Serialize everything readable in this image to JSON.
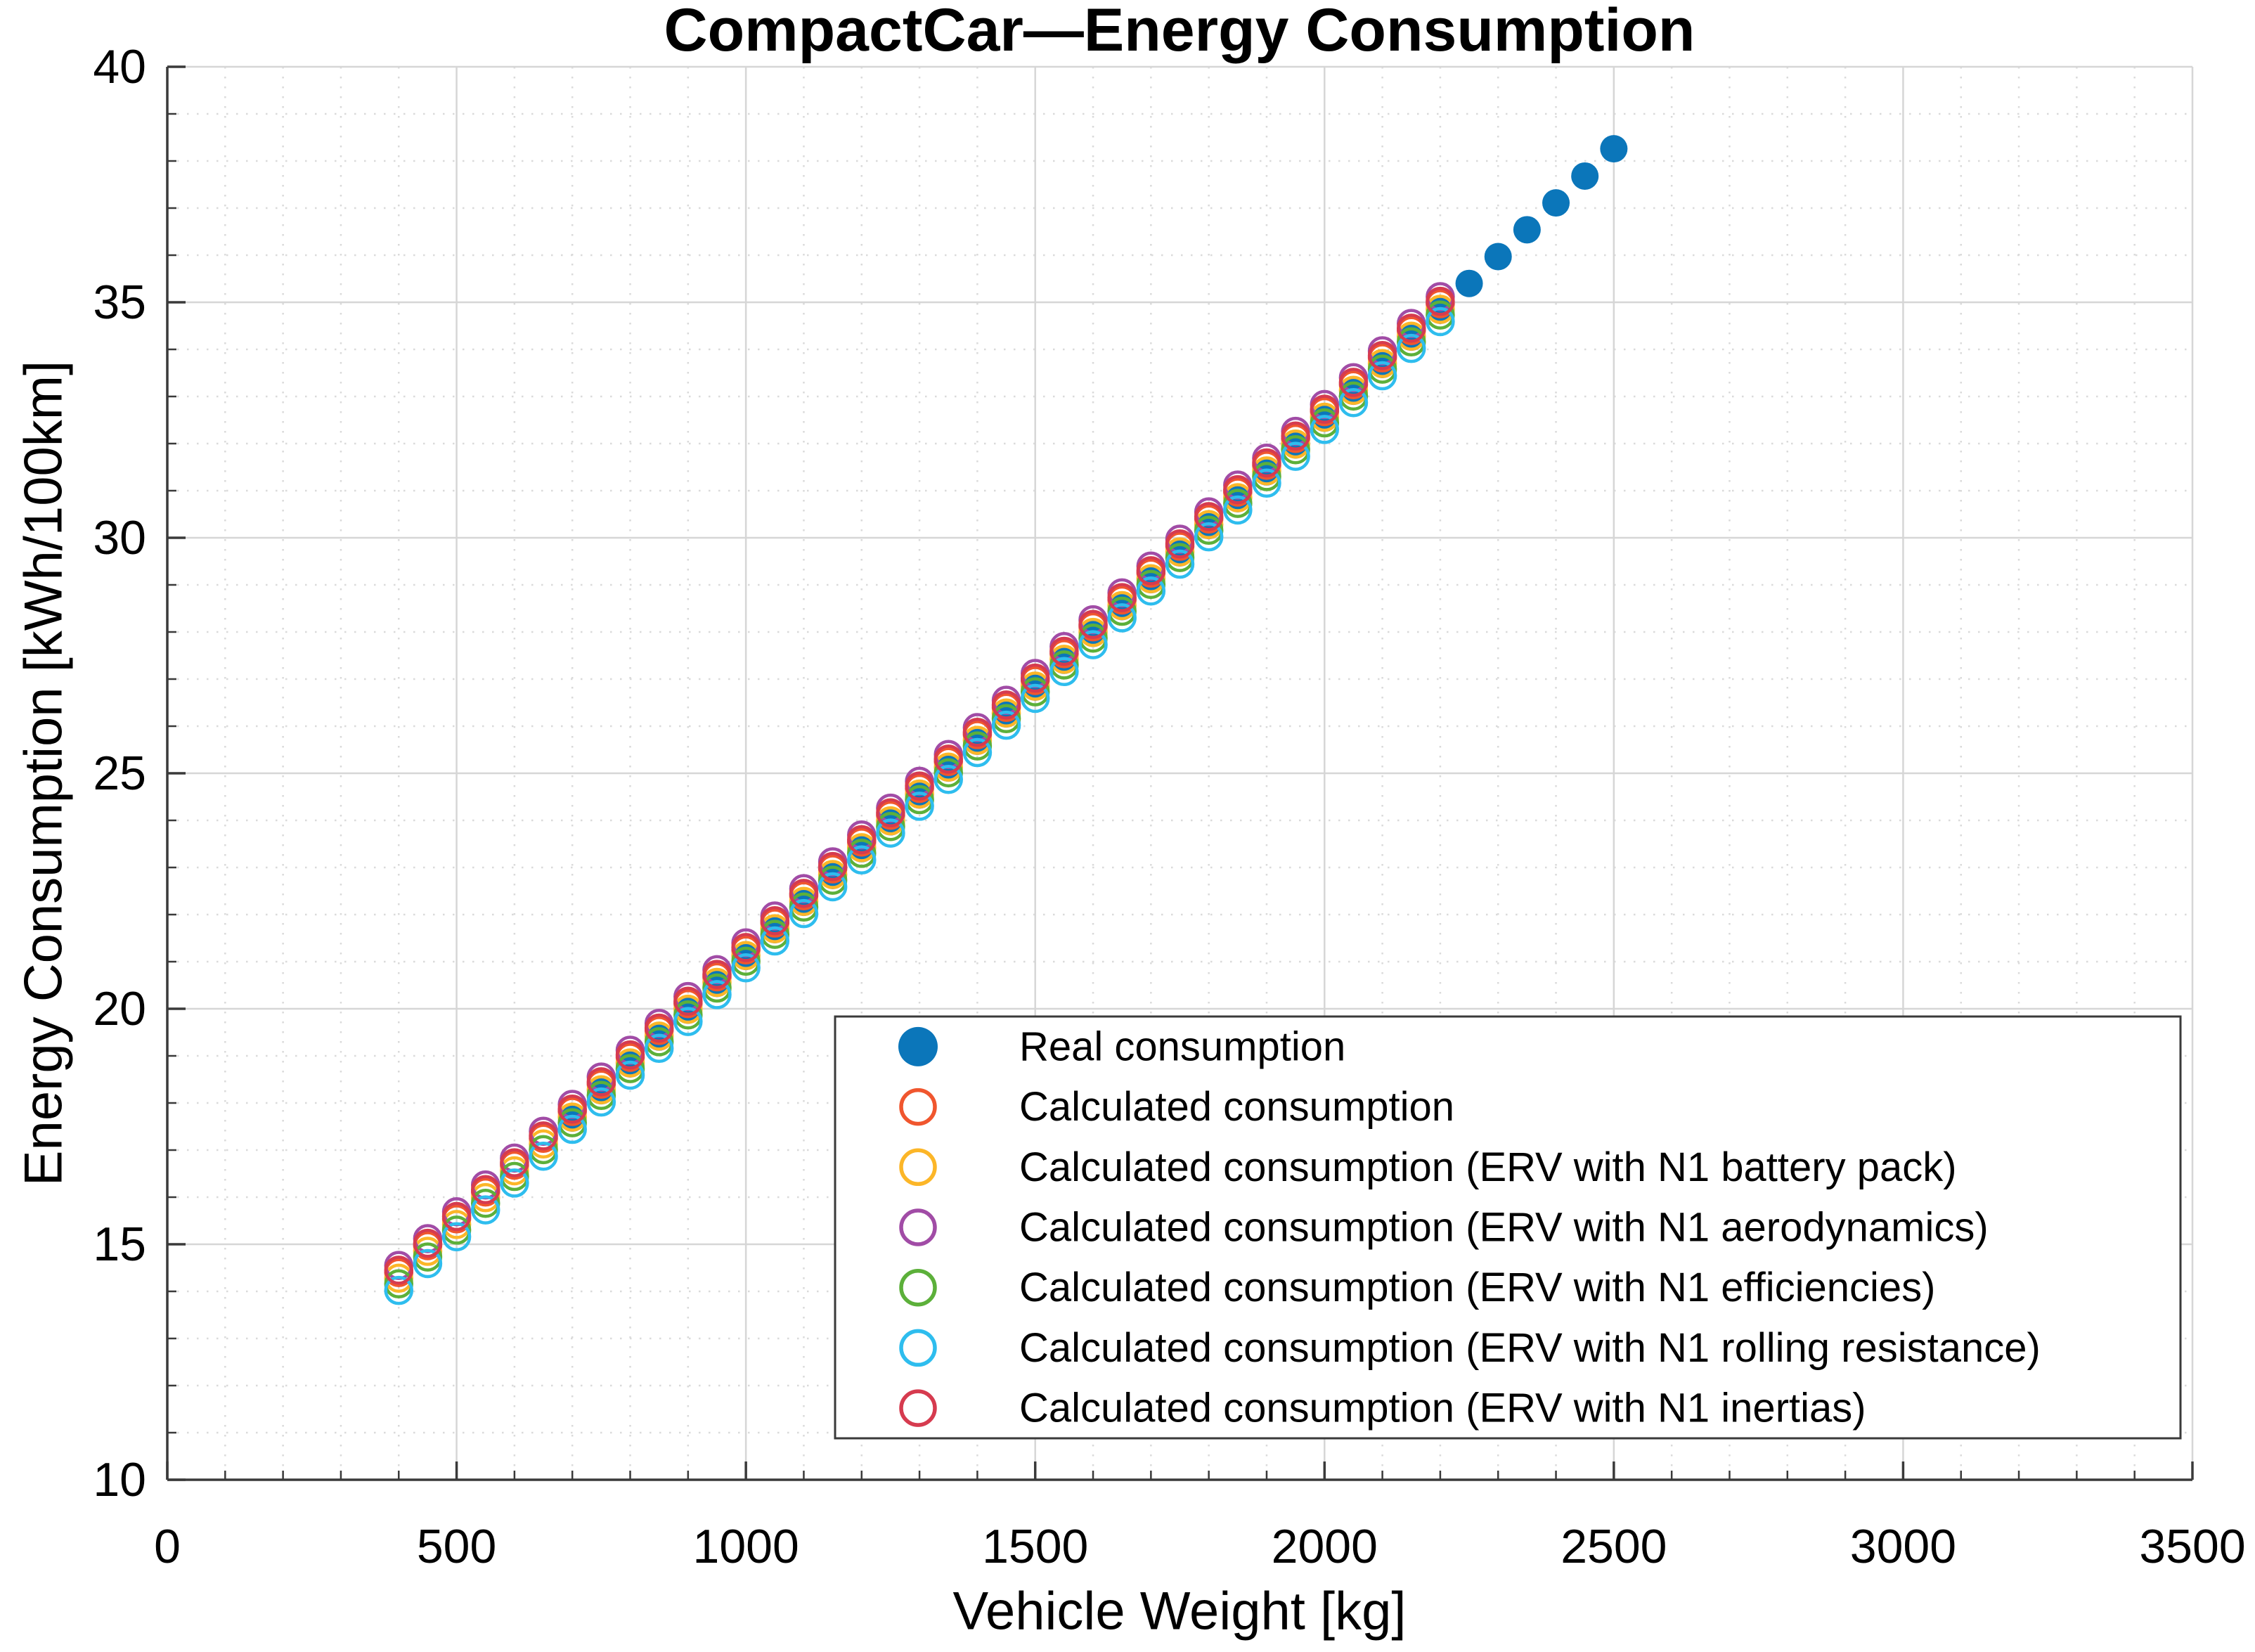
{
  "chart_data": {
    "type": "scatter",
    "title": "CompactCar—Energy Consumption",
    "xlabel": "Vehicle Weight [kg]",
    "ylabel": "Energy Consumption [kWh/100km]",
    "xlim": [
      0,
      3500
    ],
    "ylim": [
      10,
      40
    ],
    "x_major_ticks": [
      0,
      500,
      1000,
      1500,
      2000,
      2500,
      3000,
      3500
    ],
    "y_major_ticks": [
      10,
      15,
      20,
      25,
      30,
      35,
      40
    ],
    "x_minor_step": 100,
    "y_minor_step": 1,
    "grid": "major solid light gray, minor dotted light gray, box closed by gridlines top/right",
    "legend_position": "inside lower right",
    "series": [
      {
        "id": "real",
        "name": "Real consumption",
        "color": "#0b76ba",
        "marker": "filled-circle",
        "x": [
          700,
          750,
          800,
          850,
          900,
          950,
          1000,
          1050,
          1100,
          1150,
          1200,
          1250,
          1300,
          1350,
          1400,
          1450,
          1500,
          1550,
          1600,
          1650,
          1700,
          1750,
          1800,
          1850,
          1900,
          1950,
          2000,
          2050,
          2100,
          2150,
          2200,
          2250,
          2300,
          2350,
          2400,
          2450,
          2500
        ],
        "y": [
          17.68,
          18.26,
          18.83,
          19.4,
          19.97,
          20.54,
          21.11,
          21.68,
          22.26,
          22.83,
          23.4,
          23.97,
          24.54,
          25.11,
          25.68,
          26.26,
          26.83,
          27.4,
          27.97,
          28.54,
          29.11,
          29.68,
          30.26,
          30.83,
          31.4,
          31.97,
          32.54,
          33.11,
          33.68,
          34.26,
          34.83,
          35.4,
          35.97,
          36.54,
          37.11,
          37.68,
          38.26
        ]
      },
      {
        "id": "calculated",
        "name": "Calculated consumption",
        "color": "#f0562e",
        "marker": "open-circle",
        "x": [
          400,
          450,
          500,
          550,
          600,
          650,
          700,
          750,
          800,
          850,
          900,
          950,
          1000,
          1050,
          1100,
          1150,
          1200,
          1250,
          1300,
          1350,
          1400,
          1450,
          1500,
          1550,
          1600,
          1650,
          1700,
          1750,
          1800,
          1850,
          1900,
          1950,
          2000,
          2050,
          2100,
          2150,
          2200
        ],
        "y": [
          14.4,
          14.97,
          15.54,
          16.11,
          16.68,
          17.25,
          17.82,
          18.4,
          18.97,
          19.54,
          20.11,
          20.68,
          21.25,
          21.82,
          22.4,
          22.97,
          23.54,
          24.11,
          24.68,
          25.25,
          25.82,
          26.4,
          26.97,
          27.54,
          28.11,
          28.68,
          29.25,
          29.82,
          30.4,
          30.97,
          31.54,
          32.11,
          32.68,
          33.25,
          33.82,
          34.4,
          34.97
        ]
      },
      {
        "id": "battery",
        "name": "Calculated consumption (ERV with N1 battery pack)",
        "color": "#fcb628",
        "marker": "open-circle",
        "x": [
          400,
          450,
          500,
          550,
          600,
          650,
          700,
          750,
          800,
          850,
          900,
          950,
          1000,
          1050,
          1100,
          1150,
          1200,
          1250,
          1300,
          1350,
          1400,
          1450,
          1500,
          1550,
          1600,
          1650,
          1700,
          1750,
          1800,
          1850,
          1900,
          1950,
          2000,
          2050,
          2100,
          2150,
          2200
        ],
        "y": [
          14.28,
          14.85,
          15.42,
          15.99,
          16.56,
          17.13,
          17.7,
          18.28,
          18.85,
          19.42,
          19.99,
          20.56,
          21.13,
          21.7,
          22.28,
          22.85,
          23.42,
          23.99,
          24.56,
          25.13,
          25.7,
          26.28,
          26.85,
          27.42,
          27.99,
          28.56,
          29.13,
          29.7,
          30.28,
          30.85,
          31.42,
          31.99,
          32.56,
          33.13,
          33.7,
          34.28,
          34.85
        ]
      },
      {
        "id": "aero",
        "name": "Calculated consumption (ERV with N1 aerodynamics)",
        "color": "#a14ca6",
        "marker": "open-circle",
        "x": [
          400,
          450,
          500,
          550,
          600,
          650,
          700,
          750,
          800,
          850,
          900,
          950,
          1000,
          1050,
          1100,
          1150,
          1200,
          1250,
          1300,
          1350,
          1400,
          1450,
          1500,
          1550,
          1600,
          1650,
          1700,
          1750,
          1800,
          1850,
          1900,
          1950,
          2000,
          2050,
          2100,
          2150,
          2200
        ],
        "y": [
          14.55,
          15.12,
          15.69,
          16.26,
          16.83,
          17.4,
          17.97,
          18.55,
          19.12,
          19.69,
          20.26,
          20.83,
          21.4,
          21.97,
          22.55,
          23.12,
          23.69,
          24.26,
          24.83,
          25.4,
          25.97,
          26.55,
          27.12,
          27.69,
          28.26,
          28.83,
          29.4,
          29.97,
          30.55,
          31.12,
          31.69,
          32.26,
          32.83,
          33.4,
          33.97,
          34.55,
          35.12
        ]
      },
      {
        "id": "efficiency",
        "name": "Calculated consumption (ERV with N1 efficiencies)",
        "color": "#5cb03a",
        "marker": "open-circle",
        "x": [
          400,
          450,
          500,
          550,
          600,
          650,
          700,
          750,
          800,
          850,
          900,
          950,
          1000,
          1050,
          1100,
          1150,
          1200,
          1250,
          1300,
          1350,
          1400,
          1450,
          1500,
          1550,
          1600,
          1650,
          1700,
          1750,
          1800,
          1850,
          1900,
          1950,
          2000,
          2050,
          2100,
          2150,
          2200
        ],
        "y": [
          14.16,
          14.73,
          15.3,
          15.87,
          16.44,
          17.01,
          17.58,
          18.16,
          18.73,
          19.3,
          19.87,
          20.44,
          21.01,
          21.58,
          22.16,
          22.73,
          23.3,
          23.87,
          24.44,
          25.01,
          25.58,
          26.16,
          26.73,
          27.3,
          27.87,
          28.44,
          29.01,
          29.58,
          30.16,
          30.73,
          31.3,
          31.87,
          32.44,
          33.01,
          33.58,
          34.16,
          34.73
        ]
      },
      {
        "id": "rolling",
        "name": "Calculated consumption (ERV with N1 rolling resistance)",
        "color": "#2ebdee",
        "marker": "open-circle",
        "x": [
          400,
          450,
          500,
          550,
          600,
          650,
          700,
          750,
          800,
          850,
          900,
          950,
          1000,
          1050,
          1100,
          1150,
          1200,
          1250,
          1300,
          1350,
          1400,
          1450,
          1500,
          1550,
          1600,
          1650,
          1700,
          1750,
          1800,
          1850,
          1900,
          1950,
          2000,
          2050,
          2100,
          2150,
          2200
        ],
        "y": [
          14.02,
          14.59,
          15.16,
          15.73,
          16.3,
          16.87,
          17.44,
          18.02,
          18.59,
          19.16,
          19.73,
          20.3,
          20.87,
          21.44,
          22.02,
          22.59,
          23.16,
          23.73,
          24.3,
          24.87,
          25.44,
          26.02,
          26.59,
          27.16,
          27.73,
          28.3,
          28.87,
          29.44,
          30.02,
          30.59,
          31.16,
          31.73,
          32.3,
          32.87,
          33.44,
          34.02,
          34.59
        ]
      },
      {
        "id": "inertia",
        "name": "Calculated consumption (ERV with N1 inertias)",
        "color": "#d63b4f",
        "marker": "open-circle",
        "x": [
          400,
          450,
          500,
          550,
          600,
          650,
          700,
          750,
          800,
          850,
          900,
          950,
          1000,
          1050,
          1100,
          1150,
          1200,
          1250,
          1300,
          1350,
          1400,
          1450,
          1500,
          1550,
          1600,
          1650,
          1700,
          1750,
          1800,
          1850,
          1900,
          1950,
          2000,
          2050,
          2100,
          2150,
          2200
        ],
        "y": [
          14.45,
          15.02,
          15.59,
          16.16,
          16.73,
          17.3,
          17.87,
          18.45,
          19.02,
          19.59,
          20.16,
          20.73,
          21.3,
          21.87,
          22.45,
          23.02,
          23.59,
          24.16,
          24.73,
          25.3,
          25.87,
          26.45,
          27.02,
          27.59,
          28.16,
          28.73,
          29.3,
          29.87,
          30.45,
          31.02,
          31.59,
          32.16,
          32.73,
          33.3,
          33.87,
          34.45,
          35.02
        ]
      }
    ]
  },
  "style": {
    "axis_color": "#3a3a3a",
    "major_grid_color": "#d6d6d6",
    "minor_grid_color": "#dadada",
    "legend_border_color": "#3a3a3a",
    "background": "#ffffff"
  }
}
